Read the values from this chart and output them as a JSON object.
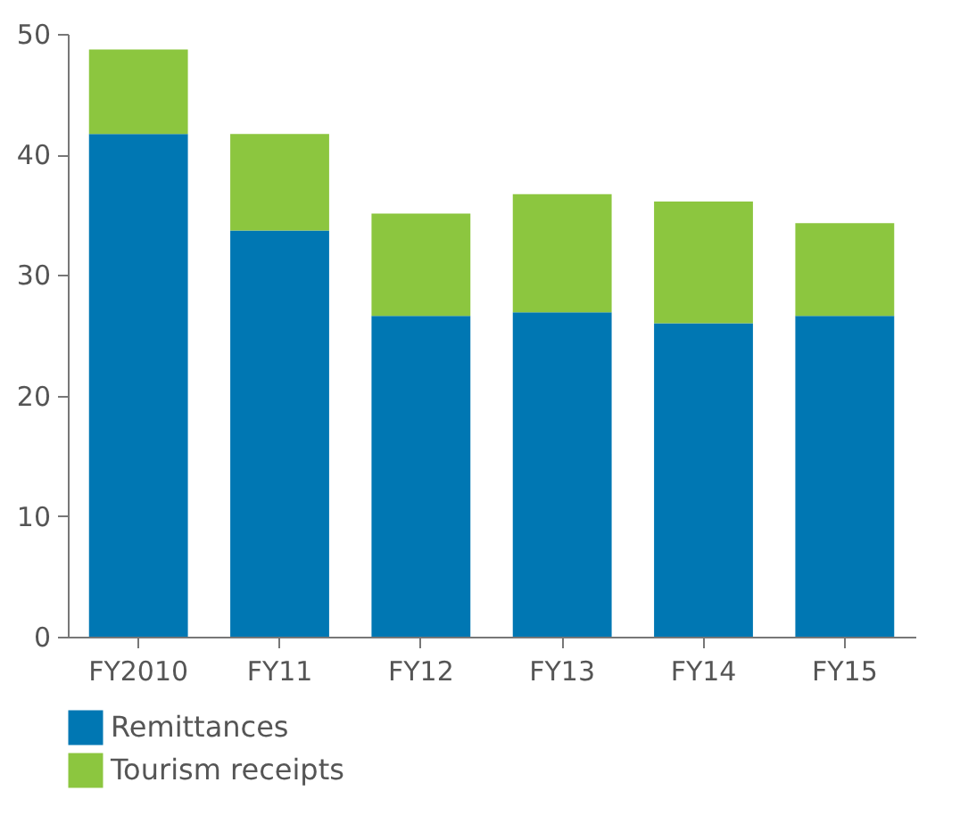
{
  "chart_data": {
    "type": "bar",
    "stacked": true,
    "categories": [
      "FY2010",
      "FY11",
      "FY12",
      "FY13",
      "FY14",
      "FY15"
    ],
    "series": [
      {
        "name": "Remittances",
        "color": "#0077b3",
        "values": [
          41.7,
          33.7,
          26.6,
          26.9,
          26.0,
          26.6
        ]
      },
      {
        "name": "Tourism receipts",
        "color": "#8cc63f",
        "values": [
          7.0,
          8.0,
          8.5,
          9.8,
          10.1,
          7.7
        ]
      }
    ],
    "ylim": [
      0,
      50
    ],
    "yticks": [
      0,
      10,
      20,
      30,
      40,
      50
    ],
    "legend": "bottom left"
  }
}
